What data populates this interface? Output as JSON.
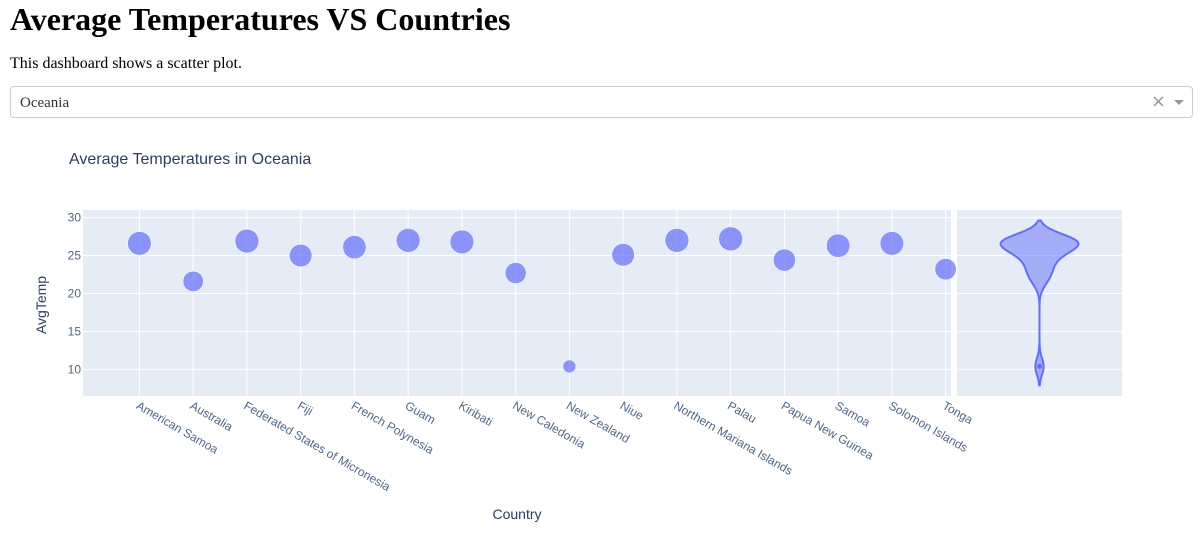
{
  "page": {
    "heading": "Average Temperatures VS Countries",
    "description": "This dashboard shows a scatter plot."
  },
  "dropdown": {
    "selected": "Oceania",
    "clear_glyph": "×"
  },
  "colors": {
    "marker": "#636efa",
    "plot_bg": "#e5ecf6",
    "grid": "#ffffff",
    "text": "#2a3f5f",
    "tick_text": "#506784"
  },
  "chart_data": {
    "type": "scatter",
    "title": "Average Temperatures in Oceania",
    "xlabel": "Country",
    "ylabel": "AvgTemp",
    "ylim": [
      6.5,
      31
    ],
    "yticks": [
      10,
      15,
      20,
      25,
      30
    ],
    "grid": true,
    "marginal": "violin",
    "points": [
      {
        "x": "American Samoa",
        "y": 26.6
      },
      {
        "x": "Australia",
        "y": 21.6
      },
      {
        "x": "Federated States of Micronesia",
        "y": 26.9
      },
      {
        "x": "Fiji",
        "y": 25.0
      },
      {
        "x": "French Polynesia",
        "y": 26.1
      },
      {
        "x": "Guam",
        "y": 27.0
      },
      {
        "x": "Kiribati",
        "y": 26.8
      },
      {
        "x": "New Caledonia",
        "y": 22.7
      },
      {
        "x": "New Zealand",
        "y": 10.4
      },
      {
        "x": "Niue",
        "y": 25.1
      },
      {
        "x": "Northern Mariana Islands",
        "y": 27.0
      },
      {
        "x": "Palau",
        "y": 27.2
      },
      {
        "x": "Papua New Guinea",
        "y": 24.4
      },
      {
        "x": "Samoa",
        "y": 26.3
      },
      {
        "x": "Solomon Islands",
        "y": 26.6
      },
      {
        "x": "Tonga",
        "y": 23.2
      }
    ]
  }
}
